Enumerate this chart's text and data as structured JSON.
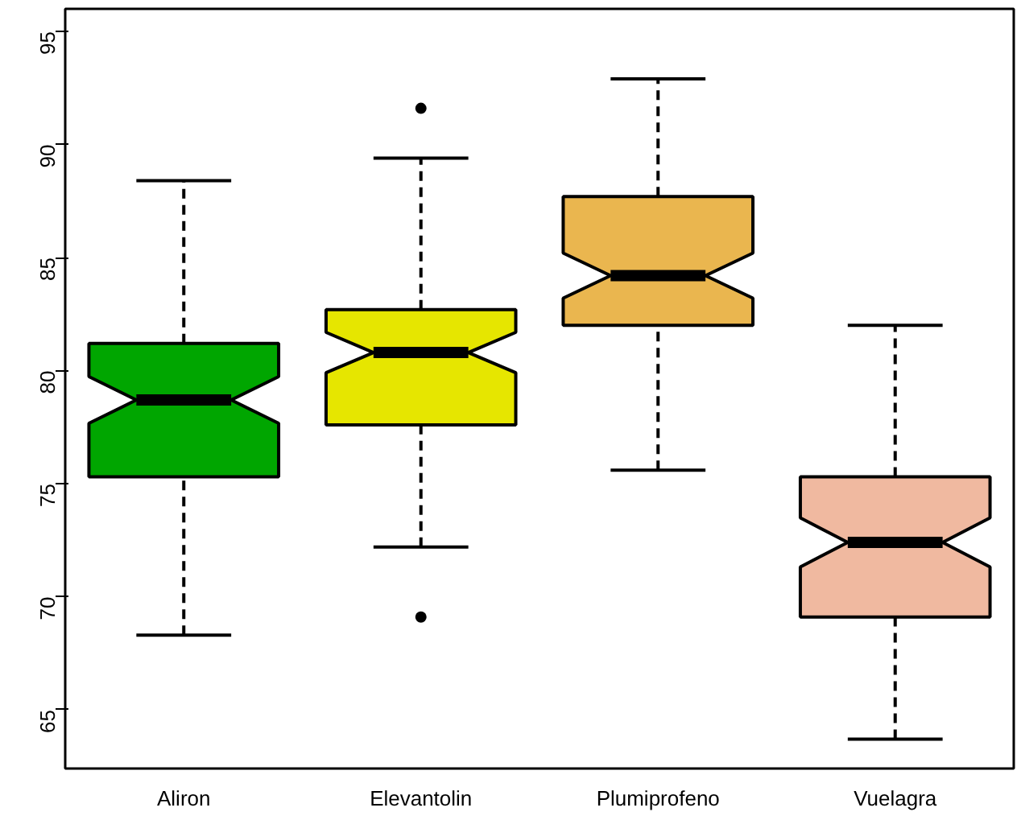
{
  "chart_data": {
    "type": "box",
    "categories": [
      "Aliron",
      "Elevantolin",
      "Plumiprofeno",
      "Vuelagra"
    ],
    "colors": [
      "#00a600",
      "#e6e600",
      "#eab64f",
      "#f0b9a0"
    ],
    "boxes": [
      {
        "low": 68.3,
        "q1": 75.3,
        "median": 78.7,
        "q3": 81.2,
        "high": 88.4
      },
      {
        "low": 72.2,
        "q1": 77.6,
        "median": 80.8,
        "q3": 82.7,
        "high": 89.4,
        "outliers": [
          91.6,
          69.1
        ]
      },
      {
        "low": 75.6,
        "q1": 82.0,
        "median": 84.2,
        "q3": 87.7,
        "high": 92.9
      },
      {
        "low": 63.7,
        "q1": 69.1,
        "median": 72.4,
        "q3": 75.3,
        "high": 82.0
      }
    ],
    "ylim": [
      62.4,
      96.0
    ],
    "yticks": [
      65,
      70,
      75,
      80,
      85,
      90,
      95
    ],
    "grid": false
  }
}
